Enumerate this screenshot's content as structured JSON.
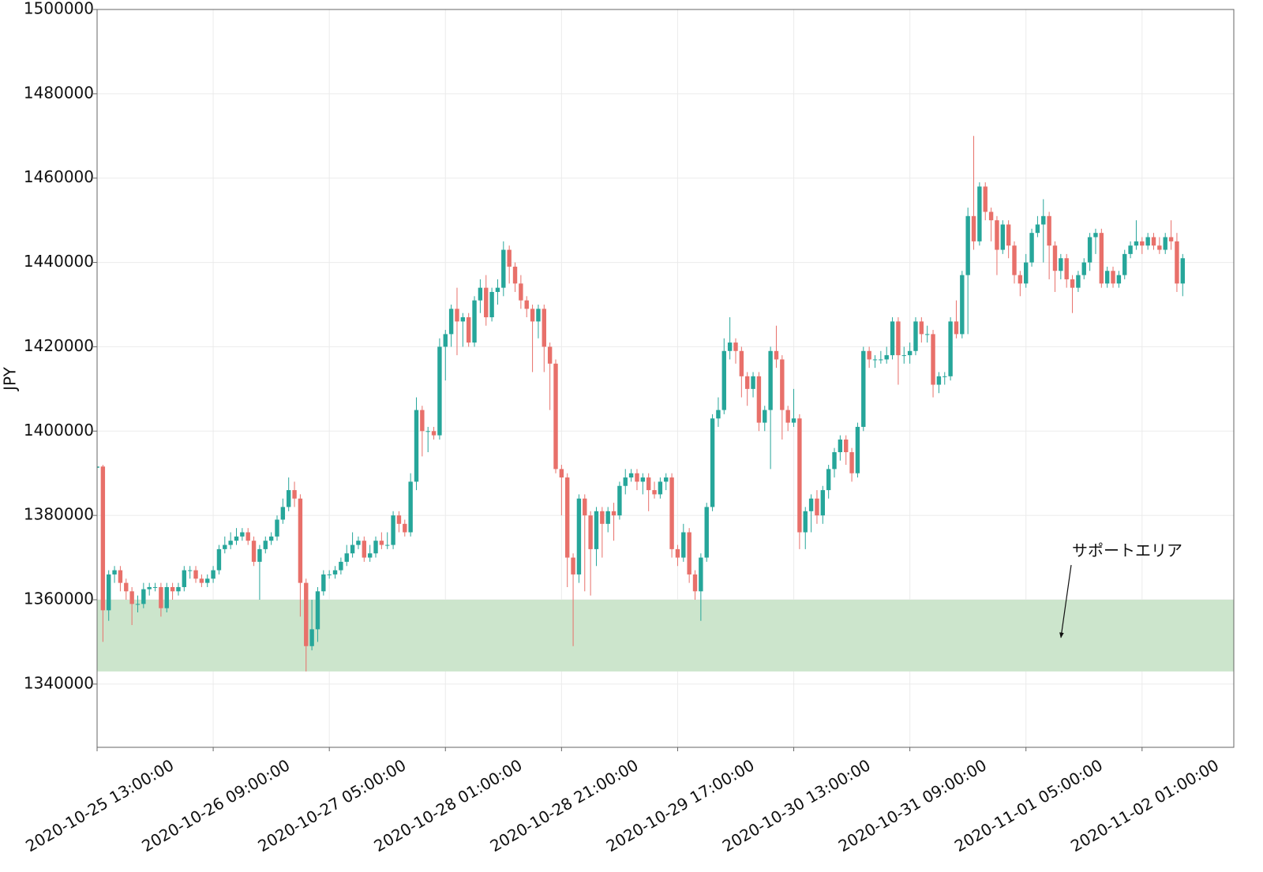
{
  "chart_data": {
    "type": "candlestick",
    "y_label": "JPY",
    "increasing_color": "#26a69a",
    "decreasing_color": "#e8706a",
    "grid": true,
    "xlim": [
      "2020-10-25 13:00:00",
      "2020-11-02 16:48:00"
    ],
    "ylim": [
      1325000,
      1500000
    ],
    "yticks": [
      1340000,
      1360000,
      1380000,
      1400000,
      1420000,
      1440000,
      1460000,
      1480000,
      1500000
    ],
    "xticks": [
      "2020-10-25 13:00:00",
      "2020-10-26 09:00:00",
      "2020-10-27 05:00:00",
      "2020-10-28 01:00:00",
      "2020-10-28 21:00:00",
      "2020-10-29 17:00:00",
      "2020-10-30 13:00:00",
      "2020-10-31 09:00:00",
      "2020-11-01 05:00:00",
      "2020-11-02 01:00:00"
    ],
    "bands": [
      {
        "from": 1343000,
        "to": 1360000,
        "color": "#cce5cc"
      }
    ],
    "annotation": {
      "text": "サポートエリア"
    },
    "x": [
      "2020-10-25 13:00:00",
      "2020-10-25 14:00:00",
      "2020-10-25 15:00:00",
      "2020-10-25 16:00:00",
      "2020-10-25 17:00:00",
      "2020-10-25 18:00:00",
      "2020-10-25 19:00:00",
      "2020-10-25 20:00:00",
      "2020-10-25 21:00:00",
      "2020-10-25 22:00:00",
      "2020-10-25 23:00:00",
      "2020-10-26 00:00:00",
      "2020-10-26 01:00:00",
      "2020-10-26 02:00:00",
      "2020-10-26 03:00:00",
      "2020-10-26 04:00:00",
      "2020-10-26 05:00:00",
      "2020-10-26 06:00:00",
      "2020-10-26 07:00:00",
      "2020-10-26 08:00:00",
      "2020-10-26 09:00:00",
      "2020-10-26 10:00:00",
      "2020-10-26 11:00:00",
      "2020-10-26 12:00:00",
      "2020-10-26 13:00:00",
      "2020-10-26 14:00:00",
      "2020-10-26 15:00:00",
      "2020-10-26 16:00:00",
      "2020-10-26 17:00:00",
      "2020-10-26 18:00:00",
      "2020-10-26 19:00:00",
      "2020-10-26 20:00:00",
      "2020-10-26 21:00:00",
      "2020-10-26 22:00:00",
      "2020-10-26 23:00:00",
      "2020-10-27 00:00:00",
      "2020-10-27 01:00:00",
      "2020-10-27 02:00:00",
      "2020-10-27 03:00:00",
      "2020-10-27 04:00:00",
      "2020-10-27 05:00:00",
      "2020-10-27 06:00:00",
      "2020-10-27 07:00:00",
      "2020-10-27 08:00:00",
      "2020-10-27 09:00:00",
      "2020-10-27 10:00:00",
      "2020-10-27 11:00:00",
      "2020-10-27 12:00:00",
      "2020-10-27 13:00:00",
      "2020-10-27 14:00:00",
      "2020-10-27 15:00:00",
      "2020-10-27 16:00:00",
      "2020-10-27 17:00:00",
      "2020-10-27 18:00:00",
      "2020-10-27 19:00:00",
      "2020-10-27 20:00:00",
      "2020-10-27 21:00:00",
      "2020-10-27 22:00:00",
      "2020-10-27 23:00:00",
      "2020-10-28 00:00:00",
      "2020-10-28 01:00:00",
      "2020-10-28 02:00:00",
      "2020-10-28 03:00:00",
      "2020-10-28 04:00:00",
      "2020-10-28 05:00:00",
      "2020-10-28 06:00:00",
      "2020-10-28 07:00:00",
      "2020-10-28 08:00:00",
      "2020-10-28 09:00:00",
      "2020-10-28 10:00:00",
      "2020-10-28 11:00:00",
      "2020-10-28 12:00:00",
      "2020-10-28 13:00:00",
      "2020-10-28 14:00:00",
      "2020-10-28 15:00:00",
      "2020-10-28 16:00:00",
      "2020-10-28 17:00:00",
      "2020-10-28 18:00:00",
      "2020-10-28 19:00:00",
      "2020-10-28 20:00:00",
      "2020-10-28 21:00:00",
      "2020-10-28 22:00:00",
      "2020-10-28 23:00:00",
      "2020-10-29 00:00:00",
      "2020-10-29 01:00:00",
      "2020-10-29 02:00:00",
      "2020-10-29 03:00:00",
      "2020-10-29 04:00:00",
      "2020-10-29 05:00:00",
      "2020-10-29 06:00:00",
      "2020-10-29 07:00:00",
      "2020-10-29 08:00:00",
      "2020-10-29 09:00:00",
      "2020-10-29 10:00:00",
      "2020-10-29 11:00:00",
      "2020-10-29 12:00:00",
      "2020-10-29 13:00:00",
      "2020-10-29 14:00:00",
      "2020-10-29 15:00:00",
      "2020-10-29 16:00:00",
      "2020-10-29 17:00:00",
      "2020-10-29 18:00:00",
      "2020-10-29 19:00:00",
      "2020-10-29 20:00:00",
      "2020-10-29 21:00:00",
      "2020-10-29 22:00:00",
      "2020-10-29 23:00:00",
      "2020-10-30 00:00:00",
      "2020-10-30 01:00:00",
      "2020-10-30 02:00:00",
      "2020-10-30 03:00:00",
      "2020-10-30 04:00:00",
      "2020-10-30 05:00:00",
      "2020-10-30 06:00:00",
      "2020-10-30 07:00:00",
      "2020-10-30 08:00:00",
      "2020-10-30 09:00:00",
      "2020-10-30 10:00:00",
      "2020-10-30 11:00:00",
      "2020-10-30 12:00:00",
      "2020-10-30 13:00:00",
      "2020-10-30 14:00:00",
      "2020-10-30 15:00:00",
      "2020-10-30 16:00:00",
      "2020-10-30 17:00:00",
      "2020-10-30 18:00:00",
      "2020-10-30 19:00:00",
      "2020-10-30 20:00:00",
      "2020-10-30 21:00:00",
      "2020-10-30 22:00:00",
      "2020-10-30 23:00:00",
      "2020-10-31 00:00:00",
      "2020-10-31 01:00:00",
      "2020-10-31 02:00:00",
      "2020-10-31 03:00:00",
      "2020-10-31 04:00:00",
      "2020-10-31 05:00:00",
      "2020-10-31 06:00:00",
      "2020-10-31 07:00:00",
      "2020-10-31 08:00:00",
      "2020-10-31 09:00:00",
      "2020-10-31 10:00:00",
      "2020-10-31 11:00:00",
      "2020-10-31 12:00:00",
      "2020-10-31 13:00:00",
      "2020-10-31 14:00:00",
      "2020-10-31 15:00:00",
      "2020-10-31 16:00:00",
      "2020-10-31 17:00:00",
      "2020-10-31 18:00:00",
      "2020-10-31 19:00:00",
      "2020-10-31 20:00:00",
      "2020-10-31 21:00:00",
      "2020-10-31 22:00:00",
      "2020-10-31 23:00:00",
      "2020-11-01 00:00:00",
      "2020-11-01 01:00:00",
      "2020-11-01 02:00:00",
      "2020-11-01 03:00:00",
      "2020-11-01 04:00:00",
      "2020-11-01 05:00:00",
      "2020-11-01 06:00:00",
      "2020-11-01 07:00:00",
      "2020-11-01 08:00:00",
      "2020-11-01 09:00:00",
      "2020-11-01 10:00:00",
      "2020-11-01 11:00:00",
      "2020-11-01 12:00:00",
      "2020-11-01 13:00:00",
      "2020-11-01 14:00:00",
      "2020-11-01 15:00:00",
      "2020-11-01 16:00:00",
      "2020-11-01 17:00:00",
      "2020-11-01 18:00:00",
      "2020-11-01 19:00:00",
      "2020-11-01 20:00:00",
      "2020-11-01 21:00:00",
      "2020-11-01 22:00:00",
      "2020-11-01 23:00:00",
      "2020-11-02 00:00:00",
      "2020-11-02 01:00:00",
      "2020-11-02 02:00:00",
      "2020-11-02 03:00:00",
      "2020-11-02 04:00:00",
      "2020-11-02 05:00:00",
      "2020-11-02 06:00:00",
      "2020-11-02 07:00:00",
      "2020-11-02 08:00:00"
    ],
    "open": [
      1391300,
      1391600,
      1357500,
      1366000,
      1367000,
      1364000,
      1362000,
      1359000,
      1359000,
      1362500,
      1363000,
      1363000,
      1358000,
      1363000,
      1362000,
      1363000,
      1367000,
      1367000,
      1365000,
      1364000,
      1365000,
      1367000,
      1372000,
      1373000,
      1374000,
      1375000,
      1376000,
      1374000,
      1369000,
      1372000,
      1374000,
      1375000,
      1379000,
      1382000,
      1386000,
      1384000,
      1364000,
      1349000,
      1353000,
      1362000,
      1366000,
      1366000,
      1367000,
      1369000,
      1371000,
      1373000,
      1374000,
      1370000,
      1371000,
      1374000,
      1373000,
      1373000,
      1380000,
      1378000,
      1376000,
      1388000,
      1405000,
      1400000,
      1400000,
      1399000,
      1420000,
      1423000,
      1429000,
      1426000,
      1427000,
      1421000,
      1431000,
      1434000,
      1427000,
      1433000,
      1434000,
      1443000,
      1439000,
      1435000,
      1431000,
      1429000,
      1426000,
      1429000,
      1420000,
      1416000,
      1391000,
      1389000,
      1370000,
      1366000,
      1384000,
      1380000,
      1372000,
      1381000,
      1378000,
      1381000,
      1380000,
      1387000,
      1389000,
      1390000,
      1388000,
      1389000,
      1386000,
      1385000,
      1388000,
      1389000,
      1372000,
      1370000,
      1376000,
      1366000,
      1362000,
      1370000,
      1382000,
      1403000,
      1405000,
      1419000,
      1421000,
      1419000,
      1413000,
      1410000,
      1413000,
      1402000,
      1405000,
      1419000,
      1417000,
      1405000,
      1402000,
      1403000,
      1376000,
      1381000,
      1384000,
      1380000,
      1386000,
      1391000,
      1395000,
      1398000,
      1395000,
      1390000,
      1401000,
      1419000,
      1417000,
      1417000,
      1417000,
      1418000,
      1426000,
      1418000,
      1418000,
      1419000,
      1426000,
      1423000,
      1423000,
      1411000,
      1413000,
      1413000,
      1426000,
      1423000,
      1437000,
      1451000,
      1445000,
      1458000,
      1452000,
      1450000,
      1443000,
      1449000,
      1444000,
      1437000,
      1435000,
      1440000,
      1447000,
      1449000,
      1451000,
      1444000,
      1438000,
      1441000,
      1436000,
      1434000,
      1437000,
      1440000,
      1446000,
      1447000,
      1435000,
      1438000,
      1435000,
      1437000,
      1442000,
      1444000,
      1445000,
      1444000,
      1446000,
      1444000,
      1443000,
      1446000,
      1445000,
      1435000
    ],
    "high": [
      1391800,
      1392000,
      1367000,
      1368000,
      1368000,
      1365000,
      1363000,
      1361000,
      1364000,
      1364000,
      1364000,
      1364000,
      1364000,
      1364000,
      1364000,
      1368000,
      1368000,
      1368000,
      1366000,
      1366000,
      1368000,
      1373000,
      1375000,
      1376000,
      1377000,
      1377000,
      1377000,
      1375000,
      1373000,
      1375000,
      1376000,
      1380000,
      1384000,
      1389000,
      1388000,
      1385000,
      1365000,
      1360000,
      1363000,
      1367000,
      1367000,
      1368000,
      1370000,
      1373000,
      1376000,
      1375000,
      1375000,
      1373000,
      1375000,
      1376000,
      1376000,
      1381000,
      1381000,
      1379000,
      1390000,
      1408000,
      1406000,
      1401000,
      1401000,
      1422000,
      1424000,
      1430000,
      1434000,
      1428000,
      1428000,
      1432000,
      1436000,
      1437000,
      1434000,
      1436000,
      1445000,
      1444000,
      1440000,
      1437000,
      1432000,
      1430000,
      1430000,
      1430000,
      1421000,
      1417000,
      1392000,
      1390000,
      1371000,
      1385000,
      1385000,
      1381000,
      1382000,
      1382000,
      1382000,
      1383000,
      1388000,
      1391000,
      1391000,
      1391000,
      1390000,
      1390000,
      1388000,
      1389000,
      1390000,
      1390000,
      1373000,
      1378000,
      1377000,
      1367000,
      1371000,
      1383000,
      1404000,
      1408000,
      1422000,
      1427000,
      1422000,
      1420000,
      1414000,
      1414000,
      1414000,
      1406000,
      1420000,
      1425000,
      1418000,
      1406000,
      1410000,
      1404000,
      1382000,
      1385000,
      1386000,
      1387000,
      1392000,
      1396000,
      1399000,
      1399000,
      1396000,
      1402000,
      1420000,
      1420000,
      1418000,
      1419000,
      1420000,
      1427000,
      1427000,
      1420000,
      1421000,
      1427000,
      1427000,
      1425000,
      1424000,
      1414000,
      1414000,
      1427000,
      1431000,
      1438000,
      1453000,
      1470000,
      1459000,
      1459000,
      1453000,
      1451000,
      1450000,
      1450000,
      1445000,
      1438000,
      1442000,
      1448000,
      1451000,
      1455000,
      1452000,
      1445000,
      1442000,
      1442000,
      1437000,
      1438000,
      1441000,
      1447000,
      1448000,
      1448000,
      1439000,
      1439000,
      1438000,
      1443000,
      1445000,
      1450000,
      1446000,
      1447000,
      1447000,
      1446000,
      1447000,
      1450000,
      1447000,
      1442000
    ],
    "low": [
      1391000,
      1350000,
      1355000,
      1364000,
      1362000,
      1360000,
      1354000,
      1357000,
      1358000,
      1361000,
      1362000,
      1356000,
      1357000,
      1360000,
      1361000,
      1362000,
      1365000,
      1364000,
      1363000,
      1363000,
      1364000,
      1366000,
      1371000,
      1372000,
      1373000,
      1374000,
      1373000,
      1368000,
      1360000,
      1371000,
      1373000,
      1374000,
      1378000,
      1381000,
      1382000,
      1356000,
      1343000,
      1348000,
      1350000,
      1361000,
      1365000,
      1365000,
      1366000,
      1368000,
      1370000,
      1372000,
      1369000,
      1369000,
      1370000,
      1372000,
      1372000,
      1372000,
      1376000,
      1375000,
      1375000,
      1386000,
      1394000,
      1395000,
      1398000,
      1398000,
      1412000,
      1420000,
      1418000,
      1420000,
      1420000,
      1420000,
      1428000,
      1425000,
      1426000,
      1430000,
      1432000,
      1435000,
      1433000,
      1429000,
      1427000,
      1414000,
      1422000,
      1414000,
      1405000,
      1390000,
      1380000,
      1363000,
      1349000,
      1364000,
      1362000,
      1361000,
      1368000,
      1370000,
      1376000,
      1374000,
      1379000,
      1385000,
      1388000,
      1386000,
      1385000,
      1381000,
      1384000,
      1384000,
      1386000,
      1370000,
      1368000,
      1369000,
      1364000,
      1360000,
      1355000,
      1369000,
      1381000,
      1401000,
      1404000,
      1417000,
      1416000,
      1408000,
      1406000,
      1408000,
      1400000,
      1400000,
      1391000,
      1415000,
      1398000,
      1400000,
      1401000,
      1372000,
      1372000,
      1376000,
      1378000,
      1378000,
      1384000,
      1389000,
      1393000,
      1392000,
      1388000,
      1389000,
      1400000,
      1415000,
      1415000,
      1416000,
      1416000,
      1417000,
      1411000,
      1416000,
      1416000,
      1418000,
      1421000,
      1421000,
      1408000,
      1409000,
      1411000,
      1412000,
      1422000,
      1422000,
      1423000,
      1443000,
      1444000,
      1450000,
      1445000,
      1437000,
      1442000,
      1441000,
      1435000,
      1432000,
      1434000,
      1439000,
      1446000,
      1440000,
      1436000,
      1433000,
      1436000,
      1434000,
      1428000,
      1433000,
      1436000,
      1438000,
      1442000,
      1434000,
      1434000,
      1434000,
      1434000,
      1436000,
      1441000,
      1443000,
      1442000,
      1443000,
      1443000,
      1442000,
      1442000,
      1443000,
      1433000,
      1432000
    ],
    "close": [
      1391600,
      1357500,
      1366000,
      1367000,
      1364000,
      1362000,
      1359000,
      1359000,
      1362500,
      1363000,
      1363000,
      1358000,
      1363000,
      1362000,
      1363000,
      1367000,
      1367000,
      1365000,
      1364000,
      1365000,
      1367000,
      1372000,
      1373000,
      1374000,
      1375000,
      1376000,
      1374000,
      1369000,
      1372000,
      1374000,
      1375000,
      1379000,
      1382000,
      1386000,
      1384000,
      1364000,
      1349000,
      1353000,
      1362000,
      1366000,
      1366000,
      1367000,
      1369000,
      1371000,
      1373000,
      1374000,
      1370000,
      1371000,
      1374000,
      1373000,
      1373000,
      1380000,
      1378000,
      1376000,
      1388000,
      1405000,
      1400000,
      1400000,
      1399000,
      1420000,
      1423000,
      1429000,
      1426000,
      1427000,
      1421000,
      1431000,
      1434000,
      1427000,
      1433000,
      1434000,
      1443000,
      1439000,
      1435000,
      1431000,
      1429000,
      1426000,
      1429000,
      1420000,
      1416000,
      1391000,
      1389000,
      1370000,
      1366000,
      1384000,
      1380000,
      1372000,
      1381000,
      1378000,
      1381000,
      1380000,
      1387000,
      1389000,
      1390000,
      1388000,
      1389000,
      1386000,
      1385000,
      1388000,
      1389000,
      1372000,
      1370000,
      1376000,
      1366000,
      1362000,
      1370000,
      1382000,
      1403000,
      1405000,
      1419000,
      1421000,
      1419000,
      1413000,
      1410000,
      1413000,
      1402000,
      1405000,
      1419000,
      1417000,
      1405000,
      1402000,
      1403000,
      1376000,
      1381000,
      1384000,
      1380000,
      1386000,
      1391000,
      1395000,
      1398000,
      1395000,
      1390000,
      1401000,
      1419000,
      1417000,
      1417000,
      1417000,
      1418000,
      1426000,
      1418000,
      1418000,
      1419000,
      1426000,
      1423000,
      1423000,
      1411000,
      1413000,
      1413000,
      1426000,
      1423000,
      1437000,
      1451000,
      1445000,
      1458000,
      1452000,
      1450000,
      1443000,
      1449000,
      1444000,
      1437000,
      1435000,
      1440000,
      1447000,
      1449000,
      1451000,
      1444000,
      1438000,
      1441000,
      1436000,
      1434000,
      1437000,
      1440000,
      1446000,
      1447000,
      1435000,
      1438000,
      1435000,
      1437000,
      1442000,
      1444000,
      1445000,
      1444000,
      1446000,
      1444000,
      1443000,
      1446000,
      1445000,
      1435000,
      1441000
    ]
  }
}
